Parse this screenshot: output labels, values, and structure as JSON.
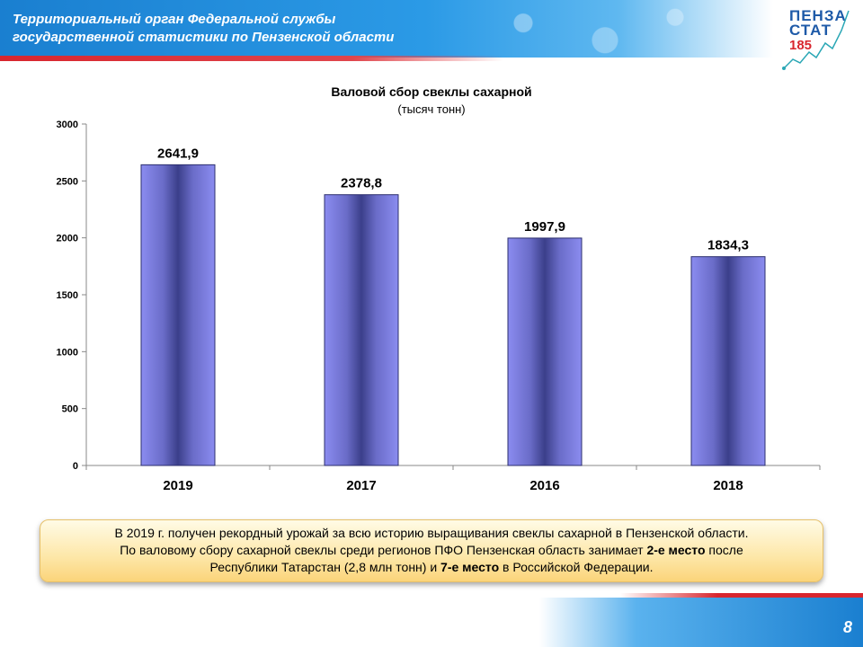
{
  "header": {
    "title_line1": "Территориальный орган Федеральной службы",
    "title_line2": "государственной  статистики по Пензенской области"
  },
  "logo": {
    "line1": "ПЕНЗА",
    "line2": "СТАТ",
    "line3": "185"
  },
  "chart_data": {
    "type": "bar",
    "title": "Валовой сбор свеклы сахарной",
    "subtitle": "(тысяч тонн)",
    "categories": [
      "2019",
      "2017",
      "2016",
      "2018"
    ],
    "values": [
      2641.9,
      2378.8,
      1997.9,
      1834.3
    ],
    "value_labels": [
      "2641,9",
      "2378,8",
      "1997,9",
      "1834,3"
    ],
    "ylim": [
      0,
      3000
    ],
    "yticks": [
      "0",
      "500",
      "1000",
      "1500",
      "2000",
      "2500",
      "3000"
    ],
    "bar_color": "#8b8cf0",
    "bar_shade_color": "#3b3f8a",
    "grid": false,
    "legend": "none"
  },
  "callout": {
    "line1": "В 2019 г. получен  рекордный урожай за всю историю выращивания свеклы сахарной в Пензенской области.",
    "line2_pre": "По валовому сбору сахарной свеклы среди регионов ПФО Пензенская область занимает ",
    "line2_bold": "2-е место",
    "line2_post": " после",
    "line3_pre": "Республики  Татарстан (2,8 млн тонн) и ",
    "line3_bold": "7-е место",
    "line3_post": " в Российской Федерации."
  },
  "footer": {
    "page_number": "8"
  },
  "colors": {
    "header_blue": "#1a7fd0",
    "accent_red": "#d8262e",
    "callout_fill": "#fde7a8"
  }
}
